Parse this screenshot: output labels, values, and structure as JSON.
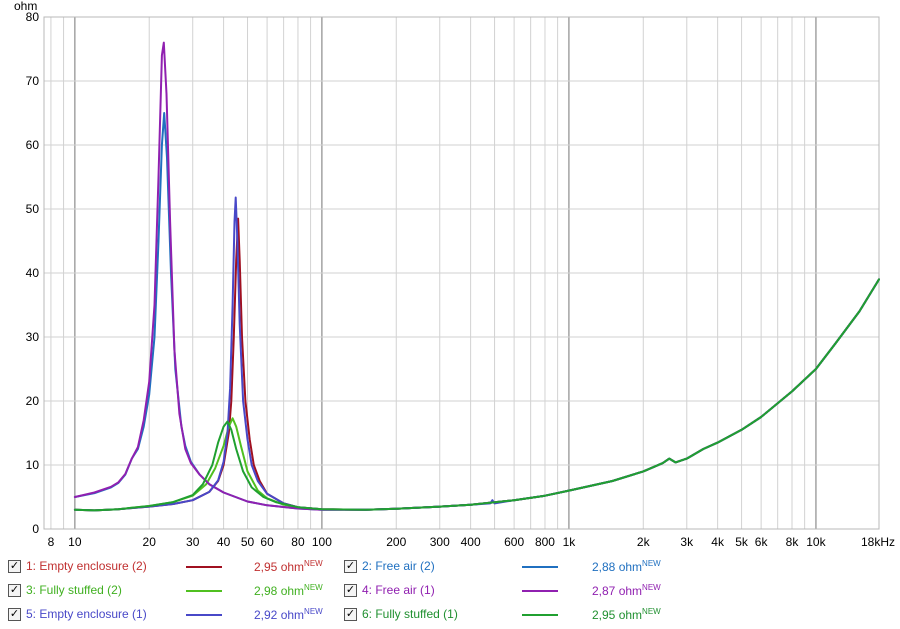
{
  "chart_data": {
    "type": "line",
    "ylabel": "ohm",
    "xlabel": "",
    "x_scale": "log",
    "xlim": [
      7.5,
      18000
    ],
    "ylim": [
      0,
      80
    ],
    "grid": true,
    "y_ticks": [
      0,
      10,
      20,
      30,
      40,
      50,
      60,
      70,
      80
    ],
    "x_ticks": [
      {
        "v": 8,
        "label": "8"
      },
      {
        "v": 10,
        "label": "10"
      },
      {
        "v": 20,
        "label": "20"
      },
      {
        "v": 30,
        "label": "30"
      },
      {
        "v": 40,
        "label": "40"
      },
      {
        "v": 50,
        "label": "50"
      },
      {
        "v": 60,
        "label": "60"
      },
      {
        "v": 80,
        "label": "80"
      },
      {
        "v": 100,
        "label": "100"
      },
      {
        "v": 200,
        "label": "200"
      },
      {
        "v": 300,
        "label": "300"
      },
      {
        "v": 400,
        "label": "400"
      },
      {
        "v": 600,
        "label": "600"
      },
      {
        "v": 800,
        "label": "800"
      },
      {
        "v": 1000,
        "label": "1k"
      },
      {
        "v": 2000,
        "label": "2k"
      },
      {
        "v": 3000,
        "label": "3k"
      },
      {
        "v": 4000,
        "label": "4k"
      },
      {
        "v": 5000,
        "label": "5k"
      },
      {
        "v": 6000,
        "label": "6k"
      },
      {
        "v": 8000,
        "label": "8k"
      },
      {
        "v": 10000,
        "label": "10k"
      },
      {
        "v": 18000,
        "label": "18kHz"
      }
    ],
    "series": [
      {
        "name": "1: Empty enclosure (2)",
        "color": "#a01020",
        "value_label": "2,95 ohm",
        "points": [
          [
            10,
            3.0
          ],
          [
            12,
            2.9
          ],
          [
            15,
            3.1
          ],
          [
            20,
            3.5
          ],
          [
            25,
            3.9
          ],
          [
            30,
            4.5
          ],
          [
            35,
            5.8
          ],
          [
            38,
            7.5
          ],
          [
            40,
            10
          ],
          [
            42,
            15
          ],
          [
            43,
            20
          ],
          [
            44,
            30
          ],
          [
            45,
            42
          ],
          [
            45.8,
            48.5
          ],
          [
            46.5,
            42
          ],
          [
            47.5,
            30
          ],
          [
            49,
            20
          ],
          [
            51,
            14
          ],
          [
            53,
            10
          ],
          [
            56,
            7.5
          ],
          [
            60,
            5.5
          ],
          [
            70,
            4
          ],
          [
            80,
            3.4
          ],
          [
            100,
            3.1
          ],
          [
            150,
            3.0
          ],
          [
            200,
            3.15
          ],
          [
            300,
            3.5
          ],
          [
            400,
            3.8
          ],
          [
            600,
            4.5
          ],
          [
            800,
            5.2
          ],
          [
            1000,
            6.0
          ],
          [
            1500,
            7.5
          ],
          [
            2000,
            9.0
          ],
          [
            2400,
            10.3
          ],
          [
            2550,
            11
          ],
          [
            2700,
            10.4
          ],
          [
            3000,
            11
          ],
          [
            3500,
            12.5
          ],
          [
            4000,
            13.5
          ],
          [
            5000,
            15.5
          ],
          [
            6000,
            17.5
          ],
          [
            8000,
            21.5
          ],
          [
            10000,
            25
          ],
          [
            12000,
            29
          ],
          [
            15000,
            34
          ],
          [
            18000,
            39
          ]
        ]
      },
      {
        "name": "2: Free air (2)",
        "color": "#2070c0",
        "value_label": "2,88 ohm",
        "points": [
          [
            10,
            5.0
          ],
          [
            12,
            5.6
          ],
          [
            14,
            6.5
          ],
          [
            15,
            7.2
          ],
          [
            16,
            8.5
          ],
          [
            17,
            11
          ],
          [
            18,
            12.5
          ],
          [
            19,
            16
          ],
          [
            20,
            21
          ],
          [
            21,
            30
          ],
          [
            21.8,
            45
          ],
          [
            22.5,
            60
          ],
          [
            23,
            65
          ],
          [
            23.6,
            58
          ],
          [
            24.5,
            40
          ],
          [
            25.5,
            25
          ],
          [
            27,
            16
          ],
          [
            28,
            13
          ],
          [
            29.5,
            10.5
          ],
          [
            32,
            8.5
          ],
          [
            35,
            7
          ],
          [
            40,
            5.7
          ],
          [
            50,
            4.3
          ],
          [
            60,
            3.7
          ],
          [
            80,
            3.2
          ],
          [
            100,
            3.0
          ],
          [
            150,
            3.0
          ],
          [
            200,
            3.15
          ],
          [
            300,
            3.5
          ],
          [
            400,
            3.8
          ],
          [
            600,
            4.5
          ],
          [
            800,
            5.2
          ],
          [
            1000,
            6.0
          ],
          [
            1500,
            7.5
          ],
          [
            2000,
            9.0
          ],
          [
            2400,
            10.3
          ],
          [
            2550,
            11
          ],
          [
            2700,
            10.4
          ],
          [
            3000,
            11
          ],
          [
            3500,
            12.5
          ],
          [
            4000,
            13.5
          ],
          [
            5000,
            15.5
          ],
          [
            6000,
            17.5
          ],
          [
            8000,
            21.5
          ],
          [
            10000,
            25
          ],
          [
            12000,
            29
          ],
          [
            15000,
            34
          ],
          [
            18000,
            39
          ]
        ]
      },
      {
        "name": "3: Fully stuffed (2)",
        "color": "#50c020",
        "value_label": "2,98 ohm",
        "points": [
          [
            10,
            3.0
          ],
          [
            12,
            2.9
          ],
          [
            15,
            3.1
          ],
          [
            20,
            3.6
          ],
          [
            25,
            4.2
          ],
          [
            30,
            5.2
          ],
          [
            34,
            7
          ],
          [
            37,
            9.5
          ],
          [
            40,
            13
          ],
          [
            42,
            16
          ],
          [
            43.5,
            17.3
          ],
          [
            45,
            16
          ],
          [
            47,
            13
          ],
          [
            50,
            9
          ],
          [
            55,
            6
          ],
          [
            60,
            4.8
          ],
          [
            70,
            3.8
          ],
          [
            80,
            3.4
          ],
          [
            100,
            3.1
          ],
          [
            150,
            3.0
          ],
          [
            200,
            3.15
          ],
          [
            300,
            3.5
          ],
          [
            400,
            3.8
          ],
          [
            600,
            4.5
          ],
          [
            800,
            5.2
          ],
          [
            1000,
            6.0
          ],
          [
            1500,
            7.5
          ],
          [
            2000,
            9.0
          ],
          [
            2400,
            10.3
          ],
          [
            2550,
            11
          ],
          [
            2700,
            10.4
          ],
          [
            3000,
            11
          ],
          [
            3500,
            12.5
          ],
          [
            4000,
            13.5
          ],
          [
            5000,
            15.5
          ],
          [
            6000,
            17.5
          ],
          [
            8000,
            21.5
          ],
          [
            10000,
            25
          ],
          [
            12000,
            29
          ],
          [
            15000,
            34
          ],
          [
            18000,
            39
          ]
        ]
      },
      {
        "name": "4: Free air (1)",
        "color": "#9020b0",
        "value_label": "2,87 ohm",
        "points": [
          [
            10,
            5.0
          ],
          [
            12,
            5.7
          ],
          [
            14,
            6.6
          ],
          [
            15,
            7.3
          ],
          [
            16,
            8.6
          ],
          [
            17,
            11
          ],
          [
            18,
            12.8
          ],
          [
            19,
            17
          ],
          [
            20,
            23
          ],
          [
            21,
            35
          ],
          [
            21.8,
            55
          ],
          [
            22.5,
            74
          ],
          [
            22.9,
            76
          ],
          [
            23.5,
            68
          ],
          [
            24.3,
            48
          ],
          [
            25.3,
            28
          ],
          [
            26.5,
            18
          ],
          [
            28,
            12.5
          ],
          [
            29.5,
            10.3
          ],
          [
            32,
            8.5
          ],
          [
            35,
            7
          ],
          [
            40,
            5.7
          ],
          [
            50,
            4.3
          ],
          [
            60,
            3.7
          ],
          [
            80,
            3.2
          ],
          [
            100,
            3.0
          ],
          [
            150,
            3.0
          ],
          [
            200,
            3.15
          ],
          [
            300,
            3.5
          ],
          [
            400,
            3.8
          ],
          [
            600,
            4.5
          ],
          [
            800,
            5.2
          ],
          [
            1000,
            6.0
          ],
          [
            1500,
            7.5
          ],
          [
            2000,
            9.0
          ],
          [
            2400,
            10.3
          ],
          [
            2550,
            11
          ],
          [
            2700,
            10.4
          ],
          [
            3000,
            11
          ],
          [
            3500,
            12.5
          ],
          [
            4000,
            13.5
          ],
          [
            5000,
            15.5
          ],
          [
            6000,
            17.5
          ],
          [
            8000,
            21.5
          ],
          [
            10000,
            25
          ],
          [
            12000,
            29
          ],
          [
            15000,
            34
          ],
          [
            18000,
            39
          ]
        ]
      },
      {
        "name": "5: Empty enclosure (1)",
        "color": "#4848c8",
        "value_label": "2,92 ohm",
        "points": [
          [
            10,
            3.0
          ],
          [
            12,
            2.9
          ],
          [
            15,
            3.1
          ],
          [
            20,
            3.5
          ],
          [
            25,
            3.9
          ],
          [
            30,
            4.5
          ],
          [
            35,
            5.8
          ],
          [
            38,
            7.6
          ],
          [
            40,
            10.5
          ],
          [
            41.5,
            15
          ],
          [
            42.5,
            22
          ],
          [
            43.5,
            35
          ],
          [
            44.3,
            48
          ],
          [
            44.8,
            51.8
          ],
          [
            45.5,
            45
          ],
          [
            46.5,
            32
          ],
          [
            48,
            20
          ],
          [
            50,
            14
          ],
          [
            52,
            10
          ],
          [
            55,
            7.5
          ],
          [
            60,
            5.5
          ],
          [
            70,
            4
          ],
          [
            80,
            3.4
          ],
          [
            100,
            3.1
          ],
          [
            150,
            3.0
          ],
          [
            200,
            3.15
          ],
          [
            300,
            3.5
          ],
          [
            400,
            3.8
          ],
          [
            480,
            4.0
          ],
          [
            490,
            4.5
          ],
          [
            500,
            4.0
          ],
          [
            600,
            4.5
          ],
          [
            800,
            5.2
          ],
          [
            1000,
            6.0
          ],
          [
            1500,
            7.5
          ],
          [
            2000,
            9.0
          ],
          [
            2400,
            10.3
          ],
          [
            2550,
            11
          ],
          [
            2700,
            10.4
          ],
          [
            3000,
            11
          ],
          [
            3500,
            12.5
          ],
          [
            4000,
            13.5
          ],
          [
            5000,
            15.5
          ],
          [
            6000,
            17.5
          ],
          [
            8000,
            21.5
          ],
          [
            10000,
            25
          ],
          [
            12000,
            29
          ],
          [
            15000,
            34
          ],
          [
            18000,
            39
          ]
        ]
      },
      {
        "name": "6: Fully stuffed (1)",
        "color": "#20a030",
        "value_label": "2,95 ohm",
        "points": [
          [
            10,
            3.0
          ],
          [
            12,
            2.9
          ],
          [
            15,
            3.1
          ],
          [
            20,
            3.6
          ],
          [
            25,
            4.2
          ],
          [
            30,
            5.3
          ],
          [
            33,
            7
          ],
          [
            36,
            10
          ],
          [
            38,
            13.5
          ],
          [
            40,
            16
          ],
          [
            41.5,
            16.8
          ],
          [
            43,
            15.5
          ],
          [
            45,
            12.5
          ],
          [
            48,
            9
          ],
          [
            52,
            6.5
          ],
          [
            58,
            5
          ],
          [
            65,
            4.2
          ],
          [
            80,
            3.4
          ],
          [
            100,
            3.1
          ],
          [
            150,
            3.0
          ],
          [
            200,
            3.15
          ],
          [
            300,
            3.5
          ],
          [
            400,
            3.8
          ],
          [
            600,
            4.5
          ],
          [
            800,
            5.2
          ],
          [
            1000,
            6.0
          ],
          [
            1500,
            7.5
          ],
          [
            2000,
            9.0
          ],
          [
            2400,
            10.3
          ],
          [
            2550,
            11
          ],
          [
            2700,
            10.4
          ],
          [
            3000,
            11
          ],
          [
            3500,
            12.5
          ],
          [
            4000,
            13.5
          ],
          [
            5000,
            15.5
          ],
          [
            6000,
            17.5
          ],
          [
            8000,
            21.5
          ],
          [
            10000,
            25
          ],
          [
            12000,
            29
          ],
          [
            15000,
            34
          ],
          [
            18000,
            39
          ]
        ]
      }
    ]
  },
  "legend": {
    "new_badge": "NEW",
    "check_mark": "✓",
    "items": [
      {
        "label": "1: Empty enclosure (2)",
        "value": "2,95 ohm",
        "color": "#a01020",
        "text_color": "#c03030",
        "checked": true
      },
      {
        "label": "2: Free air (2)",
        "value": "2,88 ohm",
        "color": "#2070c0",
        "text_color": "#2070c0",
        "checked": true
      },
      {
        "label": "3: Fully stuffed (2)",
        "value": "2,98 ohm",
        "color": "#50c020",
        "text_color": "#40b020",
        "checked": true
      },
      {
        "label": "4: Free air (1)",
        "value": "2,87 ohm",
        "color": "#9020b0",
        "text_color": "#9020b0",
        "checked": true
      },
      {
        "label": "5: Empty enclosure (1)",
        "value": "2,92 ohm",
        "color": "#4848c8",
        "text_color": "#4848c8",
        "checked": true
      },
      {
        "label": "6: Fully stuffed (1)",
        "value": "2,95 ohm",
        "color": "#20a030",
        "text_color": "#209030",
        "checked": true
      }
    ]
  }
}
